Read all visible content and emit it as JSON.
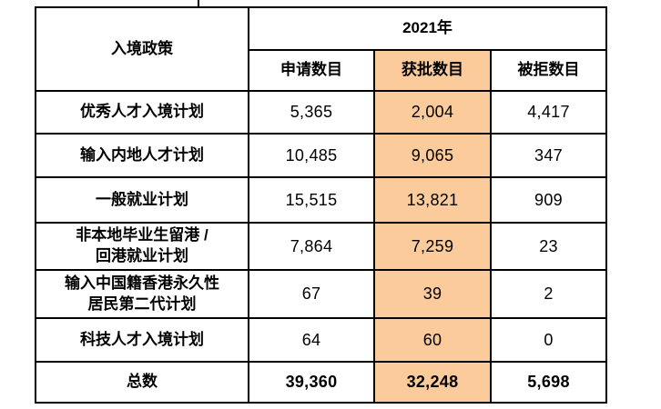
{
  "table": {
    "corner_header": "入境政策",
    "year_header": "2021年",
    "columns": [
      "申请数目",
      "获批数目",
      "被拒数目"
    ],
    "highlight_color": "#FBCB9B",
    "rows": [
      {
        "label": "优秀人才入境计划",
        "applications": "5,365",
        "approved": "2,004",
        "rejected": "4,417"
      },
      {
        "label": "输入内地人才计划",
        "applications": "10,485",
        "approved": "9,065",
        "rejected": "347"
      },
      {
        "label": "一般就业计划",
        "applications": "15,515",
        "approved": "13,821",
        "rejected": "909"
      },
      {
        "label": "非本地毕业生留港 /\n回港就业计划",
        "applications": "7,864",
        "approved": "7,259",
        "rejected": "23"
      },
      {
        "label": "输入中国籍香港永久性\n居民第二代计划",
        "applications": "67",
        "approved": "39",
        "rejected": "2"
      },
      {
        "label": "科技人才入境计划",
        "applications": "64",
        "approved": "60",
        "rejected": "0"
      }
    ],
    "total_row": {
      "label": "总数",
      "applications": "39,360",
      "approved": "32,248",
      "rejected": "5,698"
    }
  }
}
